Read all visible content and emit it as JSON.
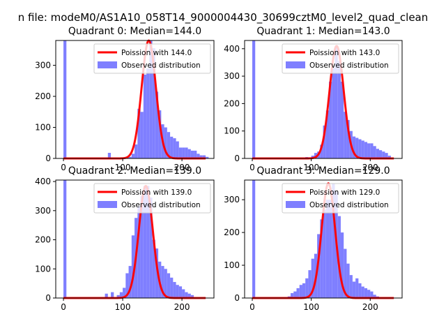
{
  "figure": {
    "suptitle": "n file: modeM0/AS1A10_058T14_9000004430_30699cztM0_level2_quad_clean"
  },
  "colors": {
    "bar": "#7f7fff",
    "fit": "#ff0000",
    "axis": "#000000"
  },
  "chart_data": [
    {
      "type": "bar",
      "title": "Quadrant 0: Median=144.0",
      "median": 144.0,
      "xlim": [
        -13,
        254
      ],
      "ylim": [
        0,
        380
      ],
      "xticks": [
        0,
        100,
        200
      ],
      "yticks": [
        0,
        100,
        200,
        300
      ],
      "bin_width": 5,
      "bin_starts": [
        0,
        75,
        105,
        110,
        115,
        120,
        125,
        130,
        135,
        140,
        145,
        150,
        155,
        160,
        165,
        170,
        175,
        180,
        185,
        190,
        195,
        200,
        205,
        210,
        215,
        220,
        225,
        230,
        235,
        240
      ],
      "values": [
        380,
        18,
        2,
        5,
        15,
        45,
        160,
        150,
        270,
        290,
        380,
        355,
        215,
        155,
        110,
        100,
        85,
        70,
        65,
        55,
        35,
        35,
        35,
        30,
        25,
        25,
        15,
        10,
        10,
        5
      ],
      "fit_peak": 380,
      "fit_range": [
        0,
        240
      ],
      "legend": [
        "Poission with 144.0",
        "Observed distribution"
      ]
    },
    {
      "type": "bar",
      "title": "Quadrant 1: Median=143.0",
      "median": 143.0,
      "xlim": [
        -13,
        254
      ],
      "ylim": [
        0,
        430
      ],
      "xticks": [
        0,
        100,
        200
      ],
      "yticks": [
        0,
        100,
        200,
        300,
        400
      ],
      "bin_width": 5,
      "bin_starts": [
        0,
        90,
        100,
        105,
        110,
        115,
        120,
        125,
        130,
        135,
        140,
        145,
        150,
        155,
        160,
        165,
        170,
        175,
        180,
        185,
        190,
        195,
        200,
        205,
        210,
        215,
        220,
        225,
        230
      ],
      "values": [
        430,
        5,
        10,
        20,
        25,
        50,
        120,
        175,
        280,
        330,
        410,
        355,
        280,
        170,
        140,
        100,
        80,
        75,
        70,
        65,
        60,
        55,
        55,
        45,
        35,
        30,
        25,
        20,
        10
      ],
      "fit_peak": 410,
      "fit_range": [
        0,
        240
      ],
      "legend": [
        "Poission with 143.0",
        "Observed distribution"
      ]
    },
    {
      "type": "bar",
      "title": "Quadrant 2: Median=139.0",
      "median": 139.0,
      "xlim": [
        -13,
        254
      ],
      "ylim": [
        0,
        405
      ],
      "xticks": [
        0,
        100,
        200
      ],
      "yticks": [
        0,
        100,
        200,
        300,
        400
      ],
      "bin_width": 5,
      "bin_starts": [
        0,
        70,
        80,
        90,
        95,
        100,
        105,
        110,
        115,
        120,
        125,
        130,
        135,
        140,
        145,
        150,
        155,
        160,
        165,
        170,
        175,
        180,
        185,
        190,
        195,
        200,
        205,
        210,
        215
      ],
      "values": [
        405,
        15,
        20,
        10,
        20,
        35,
        85,
        110,
        215,
        275,
        315,
        350,
        385,
        385,
        345,
        200,
        170,
        125,
        110,
        100,
        85,
        70,
        55,
        45,
        40,
        30,
        20,
        15,
        10
      ],
      "fit_peak": 385,
      "fit_range": [
        0,
        240
      ],
      "legend": [
        "Poission with 139.0",
        "Observed distribution"
      ]
    },
    {
      "type": "bar",
      "title": "Quadrant 3: Median=129.0",
      "median": 129.0,
      "xlim": [
        -13,
        254
      ],
      "ylim": [
        0,
        360
      ],
      "xticks": [
        0,
        100,
        200
      ],
      "yticks": [
        0,
        100,
        200,
        300
      ],
      "bin_width": 5,
      "bin_starts": [
        0,
        60,
        65,
        70,
        75,
        80,
        85,
        90,
        95,
        100,
        105,
        110,
        115,
        120,
        125,
        130,
        135,
        140,
        145,
        150,
        155,
        160,
        165,
        170,
        175,
        180,
        185,
        190,
        195,
        200,
        205,
        210
      ],
      "values": [
        360,
        5,
        15,
        20,
        30,
        40,
        45,
        60,
        85,
        120,
        135,
        195,
        240,
        270,
        300,
        300,
        350,
        325,
        250,
        200,
        150,
        105,
        70,
        50,
        60,
        45,
        35,
        30,
        25,
        20,
        10,
        5
      ],
      "fit_peak": 350,
      "fit_range": [
        0,
        240
      ],
      "legend": [
        "Poission with 129.0",
        "Observed distribution"
      ]
    }
  ]
}
